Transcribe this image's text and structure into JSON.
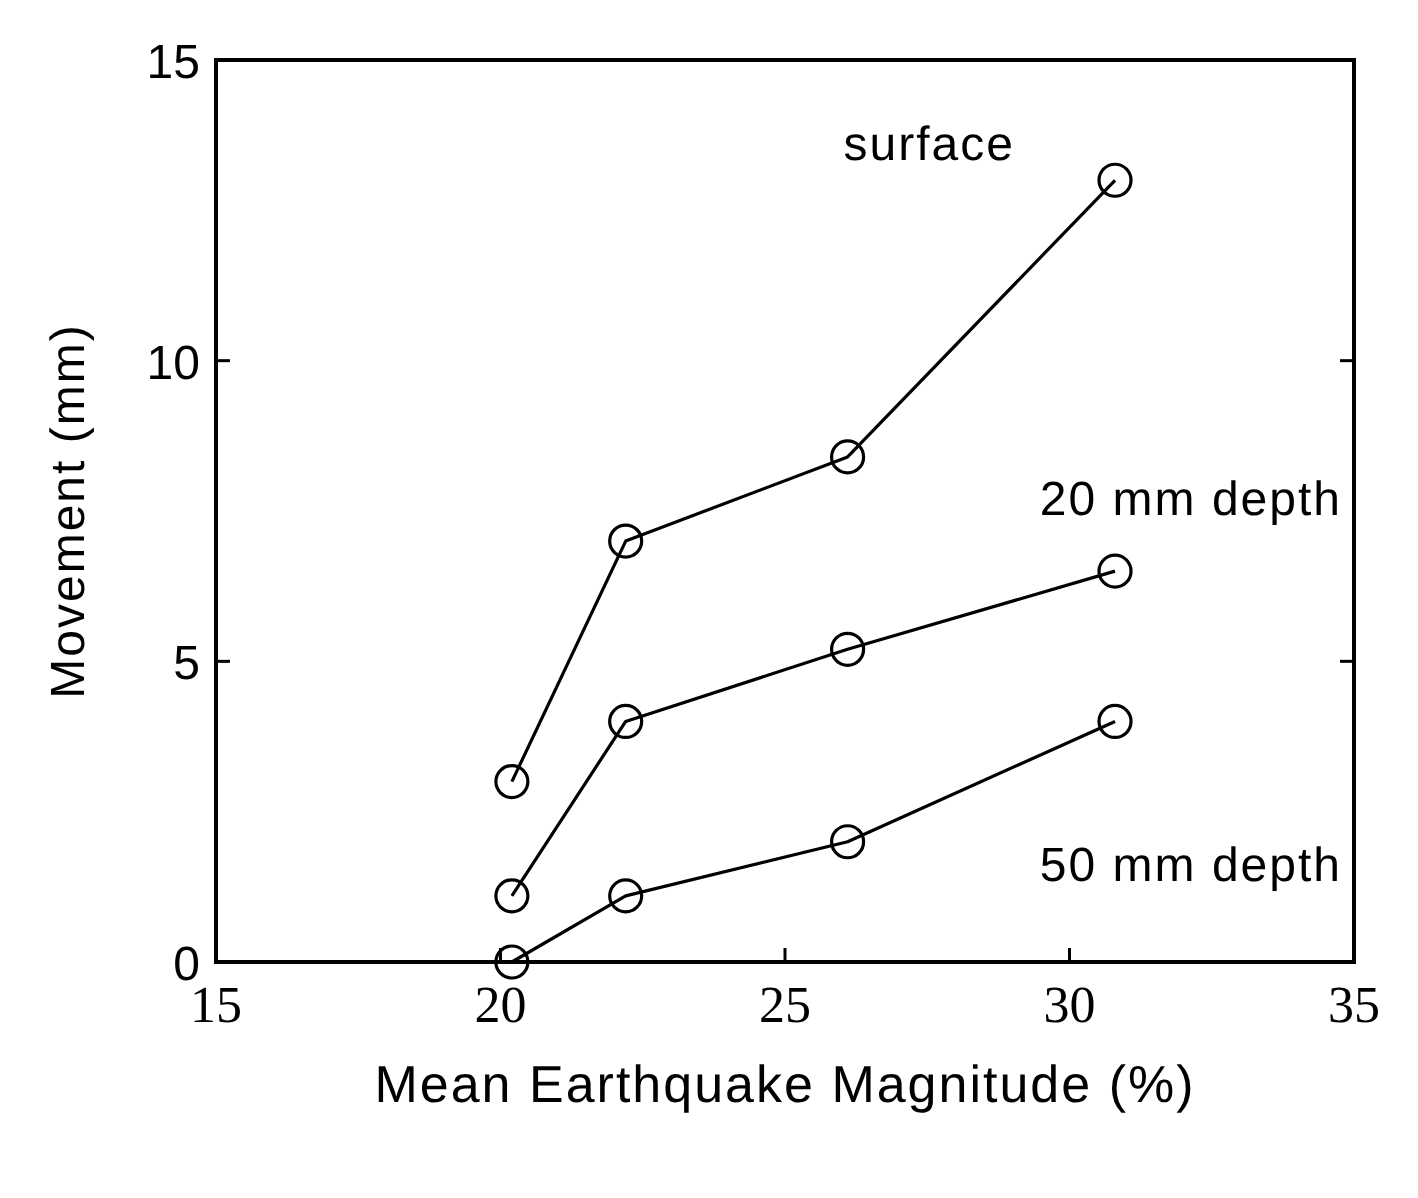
{
  "chart_data": {
    "type": "line",
    "xlabel": "Mean  Earthquake  Magnitude  (%)",
    "ylabel": "Movement (mm)",
    "x": [
      20.2,
      22.2,
      26.1,
      30.8
    ],
    "xlim": [
      15,
      35
    ],
    "xticks": [
      15,
      20,
      25,
      30,
      35
    ],
    "ylim": [
      0,
      15
    ],
    "yticks": [
      0,
      5,
      10,
      15
    ],
    "marker": "circle",
    "line_style": "solid",
    "grid": false,
    "series": [
      {
        "name": "surface",
        "color": "#000000",
        "values": [
          3.0,
          7.0,
          8.4,
          13.0
        ]
      },
      {
        "name": "20 mm depth",
        "color": "#000000",
        "values": [
          1.1,
          4.0,
          5.2,
          6.5
        ]
      },
      {
        "name": "50 mm depth",
        "color": "#000000",
        "values": [
          0.0,
          1.1,
          2.0,
          4.0
        ]
      }
    ]
  }
}
